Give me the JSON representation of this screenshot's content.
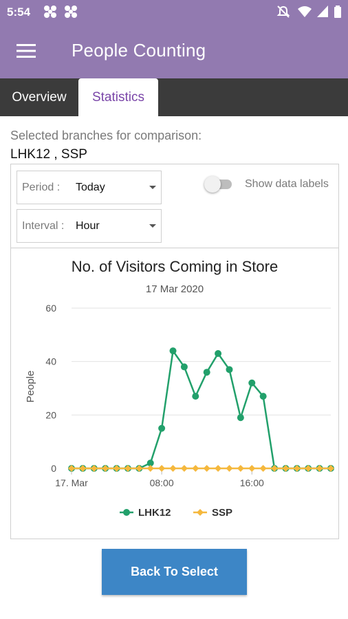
{
  "status_bar": {
    "time": "5:54",
    "icons": [
      "app-notification-icon",
      "app-notification-icon",
      "do-not-disturb-icon",
      "wifi-icon",
      "cell-signal-icon",
      "battery-icon"
    ]
  },
  "app_bar": {
    "title": "People Counting",
    "menu_icon": "hamburger-menu-icon"
  },
  "tabs": [
    {
      "label": "Overview",
      "selected": false
    },
    {
      "label": "Statistics",
      "selected": true
    }
  ],
  "selection": {
    "label": "Selected branches for comparison:",
    "value": "LHK12 , SSP"
  },
  "filters": {
    "period": {
      "label": "Period :",
      "value": "Today"
    },
    "interval": {
      "label": "Interval :",
      "value": "Hour"
    },
    "data_labels_toggle": {
      "label": "Show data labels",
      "on": false
    }
  },
  "colors": {
    "app_bar": "#927ab0",
    "tab_bar": "#3b3b3b",
    "tab_selected_text": "#7a45a8",
    "lhk12": "#22a06b",
    "ssp": "#f5b83d",
    "button": "#3d86c6"
  },
  "chart_data": {
    "type": "line",
    "title": "No. of Visitors Coming in Store",
    "subtitle": "17 Mar 2020",
    "ylabel": "People",
    "xlabel": "",
    "ylim": [
      0,
      60
    ],
    "yticks": [
      0,
      20,
      40,
      60
    ],
    "x_hours": [
      0,
      1,
      2,
      3,
      4,
      5,
      6,
      7,
      8,
      9,
      10,
      11,
      12,
      13,
      14,
      15,
      16,
      17,
      18,
      19,
      20,
      21,
      22,
      23
    ],
    "xtick_labels": [
      {
        "hour": 0,
        "label": "17. Mar"
      },
      {
        "hour": 8,
        "label": "08:00"
      },
      {
        "hour": 16,
        "label": "16:00"
      }
    ],
    "series": [
      {
        "name": "LHK12",
        "color": "#22a06b",
        "values": [
          0,
          0,
          0,
          0,
          0,
          0,
          0,
          2,
          15,
          44,
          38,
          27,
          36,
          43,
          37,
          19,
          32,
          27,
          0,
          0,
          0,
          0,
          0,
          0
        ]
      },
      {
        "name": "SSP",
        "color": "#f5b83d",
        "values": [
          0,
          0,
          0,
          0,
          0,
          0,
          0,
          0,
          0,
          0,
          0,
          0,
          0,
          0,
          0,
          0,
          0,
          0,
          0,
          0,
          0,
          0,
          0,
          0
        ]
      }
    ],
    "legend": "bottom",
    "grid": true
  },
  "actions": {
    "back_label": "Back To Select"
  }
}
